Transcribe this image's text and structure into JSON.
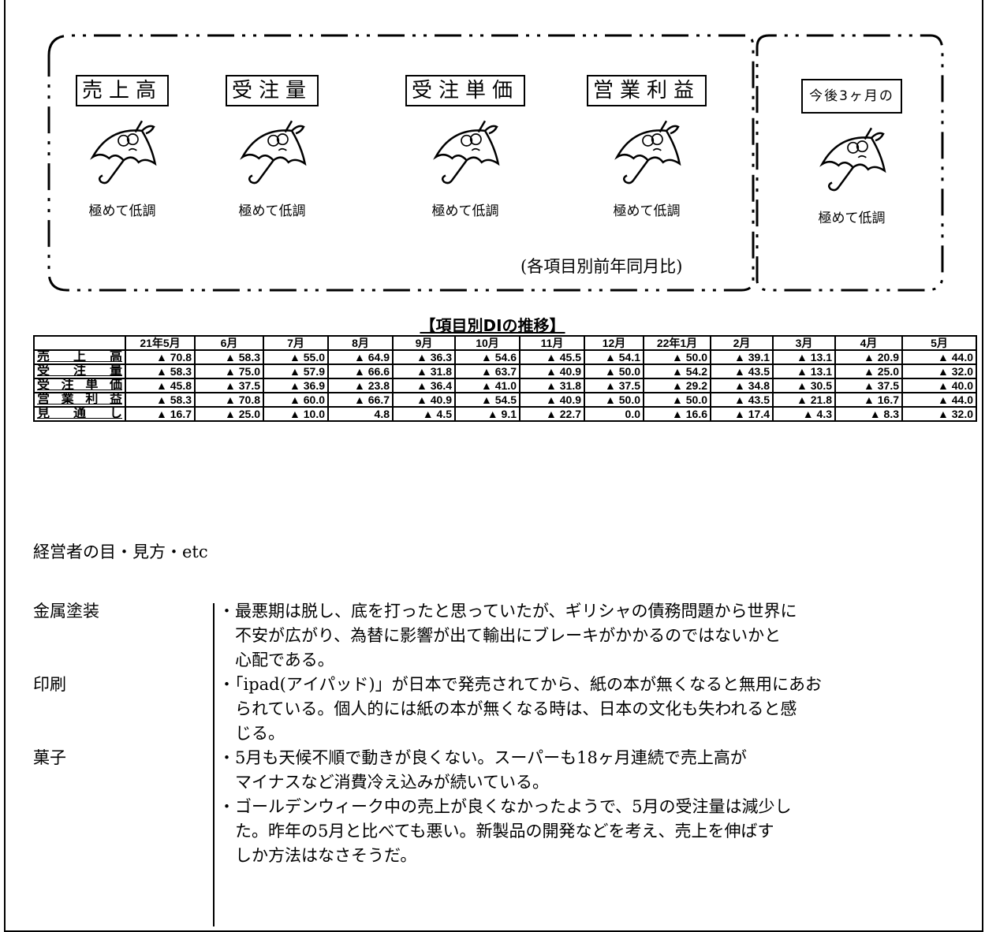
{
  "header": {
    "forecast_items": [
      {
        "label": "売上高",
        "status": "極めて低調"
      },
      {
        "label": "受注量",
        "status": "極めて低調"
      },
      {
        "label": "受注単価",
        "status": "極めて低調"
      },
      {
        "label": "営業利益",
        "status": "極めて低調"
      }
    ],
    "note": "(各項目別前年同月比)",
    "outlook": {
      "label": "今後3ヶ月の",
      "status": "極めて低調"
    }
  },
  "table": {
    "title": "【項目別DIの推移】",
    "columns": [
      "21年5月",
      "6月",
      "7月",
      "8月",
      "9月",
      "10月",
      "11月",
      "12月",
      "22年1月",
      "2月",
      "3月",
      "4月",
      "5月"
    ],
    "rows": [
      {
        "label": "売上高",
        "values": [
          "▲ 70.8",
          "▲ 58.3",
          "▲ 55.0",
          "▲ 64.9",
          "▲ 36.3",
          "▲ 54.6",
          "▲ 45.5",
          "▲ 54.1",
          "▲ 50.0",
          "▲ 39.1",
          "▲ 13.1",
          "▲ 20.9",
          "▲ 44.0"
        ]
      },
      {
        "label": "受注量",
        "values": [
          "▲ 58.3",
          "▲ 75.0",
          "▲ 57.9",
          "▲ 66.6",
          "▲ 31.8",
          "▲ 63.7",
          "▲ 40.9",
          "▲ 50.0",
          "▲ 54.2",
          "▲ 43.5",
          "▲ 13.1",
          "▲ 25.0",
          "▲ 32.0"
        ]
      },
      {
        "label": "受注単価",
        "values": [
          "▲ 45.8",
          "▲ 37.5",
          "▲ 36.9",
          "▲ 23.8",
          "▲ 36.4",
          "▲ 41.0",
          "▲ 31.8",
          "▲ 37.5",
          "▲ 29.2",
          "▲ 34.8",
          "▲ 30.5",
          "▲ 37.5",
          "▲ 40.0"
        ]
      },
      {
        "label": "営業利益",
        "values": [
          "▲ 58.3",
          "▲ 70.8",
          "▲ 60.0",
          "▲ 66.7",
          "▲ 40.9",
          "▲ 54.5",
          "▲ 40.9",
          "▲ 50.0",
          "▲ 50.0",
          "▲ 43.5",
          "▲ 21.8",
          "▲ 16.7",
          "▲ 44.0"
        ]
      },
      {
        "label": "見通し",
        "values": [
          "▲ 16.7",
          "▲ 25.0",
          "▲ 10.0",
          "4.8",
          "▲ 4.5",
          "▲ 9.1",
          "▲ 22.7",
          "0.0",
          "▲ 16.6",
          "▲ 17.4",
          "▲ 4.3",
          "▲ 8.3",
          "▲ 32.0"
        ]
      }
    ]
  },
  "comments": {
    "title": "経営者の目・見方・etc",
    "entries": [
      {
        "industry": "金属塗装",
        "paragraphs": [
          [
            "・最悪期は脱し、底を打ったと思っていたが、ギリシャの債務問題から世界に",
            "不安が広がり、為替に影響が出て輸出にブレーキがかかるのではないかと",
            "心配である。"
          ]
        ]
      },
      {
        "industry": "印刷",
        "paragraphs": [
          [
            "・「ipad(アイパッド)」が日本で発売されてから、紙の本が無くなると無用にあお",
            "られている。個人的には紙の本が無くなる時は、日本の文化も失われると感",
            "じる。"
          ]
        ]
      },
      {
        "industry": "菓子",
        "paragraphs": [
          [
            "・5月も天候不順で動きが良くない。スーパーも18ヶ月連続で売上高が",
            "マイナスなど消費冷え込みが続いている。"
          ],
          [
            "・ゴールデンウィーク中の売上が良くなかったようで、5月の受注量は減少し",
            "た。昨年の5月と比べても悪い。新製品の開発などを考え、売上を伸ばす",
            "しか方法はなさそうだ。"
          ]
        ]
      }
    ]
  }
}
